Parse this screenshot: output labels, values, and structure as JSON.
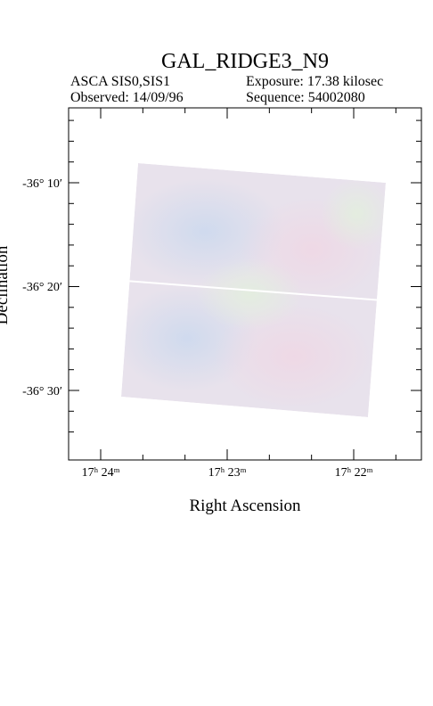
{
  "header": {
    "title": "GAL_RIDGE3_N9",
    "info": [
      "ASCA SIS0,SIS1",
      "Exposure: 17.38 kilosec",
      "Observed: 14/09/96",
      "Sequence: 54002080"
    ]
  },
  "plot": {
    "x_label": "Right Ascension",
    "y_label": "Declination",
    "x_tick_labels": [
      "17ʰ 24ᵐ",
      "17ʰ 23ᵐ",
      "17ʰ 22ᵐ"
    ],
    "y_tick_labels": [
      "-36° 10′",
      "-36° 20′",
      "-36° 30′"
    ]
  }
}
